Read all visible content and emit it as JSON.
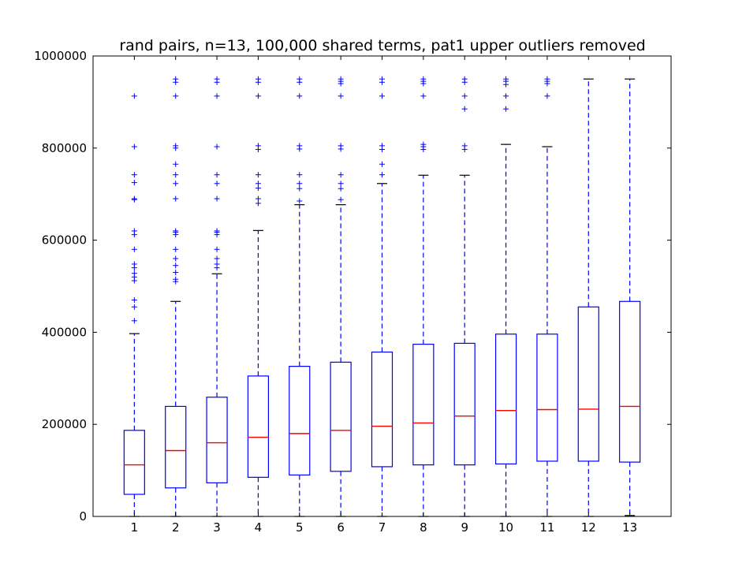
{
  "chart_data": {
    "type": "box",
    "title": "rand pairs, n=13, 100,000 shared terms, pat1 upper outliers removed",
    "xlabel": "",
    "ylabel": "",
    "ylim": [
      0,
      1000000
    ],
    "yticks": [
      "0",
      "200000",
      "400000",
      "600000",
      "800000",
      "1000000"
    ],
    "ytick_values": [
      0,
      200000,
      400000,
      600000,
      800000,
      1000000
    ],
    "categories": [
      "1",
      "2",
      "3",
      "4",
      "5",
      "6",
      "7",
      "8",
      "9",
      "10",
      "11",
      "12",
      "13"
    ],
    "colors": {
      "box": "#0000ff",
      "median": "#ff0000",
      "whisker": "#0000ff",
      "cap": "#000000",
      "flier": "#0000ff",
      "axes": "#000000"
    },
    "boxes": [
      {
        "label": "1",
        "whislo": 0,
        "q1": 48000,
        "median": 112000,
        "q3": 187000,
        "whishi": 397000,
        "fliers": [
          425000,
          455000,
          470000,
          512000,
          520000,
          528000,
          540000,
          548000,
          580000,
          612000,
          620000,
          688000,
          690000,
          725000,
          742000,
          803000,
          913000
        ]
      },
      {
        "label": "2",
        "whislo": 0,
        "q1": 62000,
        "median": 143000,
        "q3": 239000,
        "whishi": 467000,
        "fliers": [
          510000,
          515000,
          530000,
          545000,
          560000,
          580000,
          612000,
          617000,
          620000,
          690000,
          723000,
          742000,
          765000,
          800000,
          805000,
          913000,
          943000,
          950000
        ]
      },
      {
        "label": "3",
        "whislo": 0,
        "q1": 73000,
        "median": 160000,
        "q3": 259000,
        "whishi": 527000,
        "fliers": [
          540000,
          548000,
          560000,
          580000,
          612000,
          617000,
          620000,
          690000,
          723000,
          742000,
          803000,
          913000,
          943000,
          950000
        ]
      },
      {
        "label": "4",
        "whislo": 0,
        "q1": 85000,
        "median": 172000,
        "q3": 305000,
        "whishi": 621000,
        "fliers": [
          680000,
          690000,
          713000,
          723000,
          742000,
          797000,
          805000,
          913000,
          943000,
          950000
        ]
      },
      {
        "label": "5",
        "whislo": 0,
        "q1": 90000,
        "median": 180000,
        "q3": 326000,
        "whishi": 677000,
        "fliers": [
          685000,
          712000,
          723000,
          742000,
          798000,
          805000,
          913000,
          943000,
          950000
        ]
      },
      {
        "label": "6",
        "whislo": 0,
        "q1": 98000,
        "median": 187000,
        "q3": 335000,
        "whishi": 677000,
        "fliers": [
          688000,
          712000,
          723000,
          742000,
          798000,
          805000,
          913000,
          940000,
          945000,
          950000
        ]
      },
      {
        "label": "7",
        "whislo": 0,
        "q1": 108000,
        "median": 196000,
        "q3": 357000,
        "whishi": 723000,
        "fliers": [
          742000,
          765000,
          797000,
          805000,
          913000,
          943000,
          950000
        ]
      },
      {
        "label": "8",
        "whislo": 0,
        "q1": 112000,
        "median": 203000,
        "q3": 374000,
        "whishi": 741000,
        "fliers": [
          797000,
          803000,
          808000,
          913000,
          940000,
          945000,
          950000
        ]
      },
      {
        "label": "9",
        "whislo": 0,
        "q1": 112000,
        "median": 218000,
        "q3": 376000,
        "whishi": 741000,
        "fliers": [
          797000,
          805000,
          885000,
          913000,
          943000,
          950000
        ]
      },
      {
        "label": "10",
        "whislo": 0,
        "q1": 114000,
        "median": 230000,
        "q3": 396000,
        "whishi": 808000,
        "fliers": [
          885000,
          913000,
          938000,
          945000,
          950000
        ]
      },
      {
        "label": "11",
        "whislo": 0,
        "q1": 120000,
        "median": 232000,
        "q3": 396000,
        "whishi": 803000,
        "fliers": [
          913000,
          940000,
          945000,
          950000
        ]
      },
      {
        "label": "12",
        "whislo": 0,
        "q1": 120000,
        "median": 233000,
        "q3": 455000,
        "whishi": 950000,
        "fliers": []
      },
      {
        "label": "13",
        "whislo": 2000,
        "q1": 118000,
        "median": 239000,
        "q3": 467000,
        "whishi": 950000,
        "fliers": []
      }
    ]
  }
}
